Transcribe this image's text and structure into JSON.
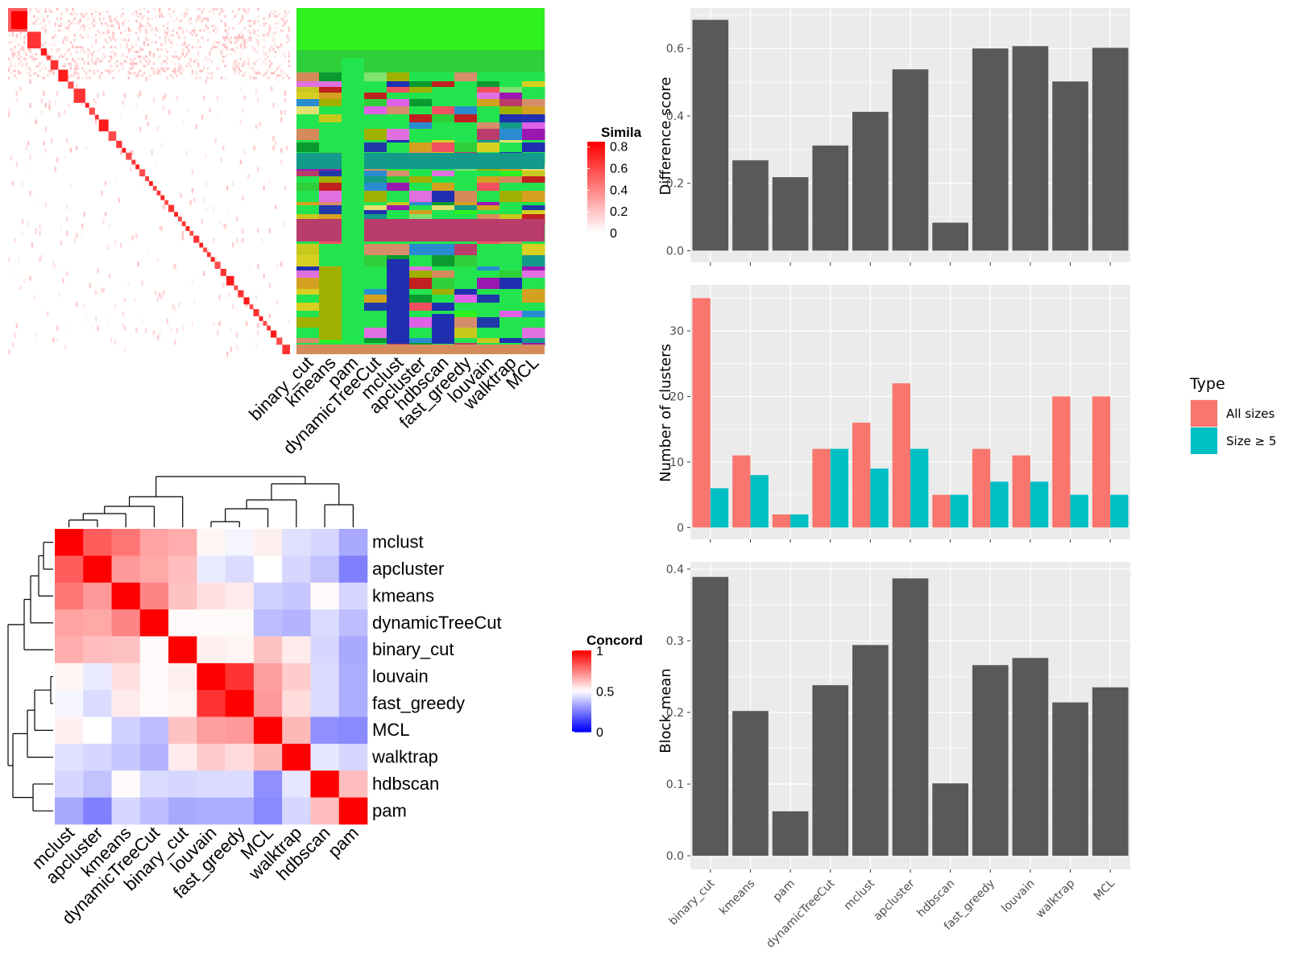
{
  "colors": {
    "panel_bg": "#ebebeb",
    "grid": "#ffffff",
    "bar": "#595959",
    "all_sizes": "#f8766d",
    "size_ge5": "#00bfc4"
  },
  "chart_data": [
    {
      "id": "similarity_heatmap",
      "type": "heatmap",
      "columns": [
        "binary_cut",
        "kmeans",
        "pam",
        "dynamicTreeCut",
        "mclust",
        "apcluster",
        "hdbscan",
        "fast_greedy",
        "louvain",
        "walktrap",
        "MCL"
      ],
      "legend_title": "Similarity",
      "legend_title_visible": "Simila",
      "legend_ticks": [
        "0.8",
        "0.6",
        "0.4",
        "0.2",
        "0"
      ],
      "legend_tick_values": [
        0.8,
        0.6,
        0.4,
        0.2,
        0
      ],
      "value_range": [
        0,
        0.85
      ],
      "cluster_block_sizes": [
        10,
        7,
        3,
        2,
        4,
        5,
        3,
        6,
        2,
        3,
        2,
        5,
        4,
        3,
        2,
        3,
        2,
        2,
        3,
        2,
        2,
        2,
        2,
        2,
        2,
        3,
        2,
        2,
        2,
        2,
        2,
        3,
        2,
        2,
        2,
        2,
        3,
        3,
        4,
        2,
        3,
        3,
        2,
        3,
        2,
        2,
        2,
        3,
        3,
        4
      ],
      "cluster_label_colors": [
        "#2ef11e",
        "#2fcf3a",
        "#22e44f",
        "#7fe36e",
        "#1f3aa8",
        "#c8c81e",
        "#a0b000",
        "#d4a020",
        "#139a8a",
        "#22e44f",
        "#d68e6a",
        "#e4e070",
        "#b93c6a",
        "#e060e8",
        "#2a8cd0",
        "#0a9a30",
        "#f05060",
        "#2030b0",
        "#9a18b0",
        "#d8d020",
        "#c02020",
        "#1f2fb0",
        "#e070e0",
        "#d58a5c"
      ]
    },
    {
      "id": "concordance_heatmap",
      "type": "heatmap",
      "rows": [
        "mclust",
        "apcluster",
        "kmeans",
        "dynamicTreeCut",
        "binary_cut",
        "louvain",
        "fast_greedy",
        "MCL",
        "walktrap",
        "hdbscan",
        "pam"
      ],
      "columns": [
        "mclust",
        "apcluster",
        "kmeans",
        "dynamicTreeCut",
        "binary_cut",
        "louvain",
        "fast_greedy",
        "MCL",
        "walktrap",
        "hdbscan",
        "pam"
      ],
      "legend_title": "Concordance",
      "legend_title_visible": "Concord",
      "legend_ticks": [
        "1",
        "0.5",
        "0"
      ],
      "legend_tick_values": [
        1,
        0.5,
        0
      ],
      "values": [
        [
          1.0,
          0.82,
          0.77,
          0.68,
          0.66,
          0.52,
          0.48,
          0.53,
          0.44,
          0.42,
          0.33
        ],
        [
          0.82,
          1.0,
          0.7,
          0.67,
          0.63,
          0.46,
          0.43,
          0.5,
          0.42,
          0.38,
          0.25
        ],
        [
          0.77,
          0.7,
          1.0,
          0.74,
          0.62,
          0.56,
          0.54,
          0.41,
          0.39,
          0.51,
          0.42
        ],
        [
          0.68,
          0.67,
          0.74,
          1.0,
          0.51,
          0.51,
          0.51,
          0.37,
          0.35,
          0.43,
          0.37
        ],
        [
          0.66,
          0.63,
          0.62,
          0.51,
          1.0,
          0.53,
          0.52,
          0.62,
          0.54,
          0.42,
          0.33
        ],
        [
          0.52,
          0.46,
          0.56,
          0.51,
          0.53,
          1.0,
          0.9,
          0.69,
          0.6,
          0.43,
          0.34
        ],
        [
          0.48,
          0.43,
          0.54,
          0.51,
          0.52,
          0.9,
          1.0,
          0.7,
          0.57,
          0.43,
          0.34
        ],
        [
          0.53,
          0.5,
          0.41,
          0.37,
          0.62,
          0.69,
          0.7,
          1.0,
          0.64,
          0.28,
          0.27
        ],
        [
          0.44,
          0.42,
          0.39,
          0.35,
          0.54,
          0.6,
          0.57,
          0.64,
          1.0,
          0.45,
          0.42
        ],
        [
          0.42,
          0.38,
          0.51,
          0.43,
          0.42,
          0.43,
          0.43,
          0.28,
          0.45,
          1.0,
          0.63
        ],
        [
          0.33,
          0.25,
          0.42,
          0.37,
          0.33,
          0.34,
          0.34,
          0.27,
          0.42,
          0.63,
          1.0
        ]
      ]
    },
    {
      "id": "difference_score",
      "type": "bar",
      "categories": [
        "binary_cut",
        "kmeans",
        "pam",
        "dynamicTreeCut",
        "mclust",
        "apcluster",
        "hdbscan",
        "fast_greedy",
        "louvain",
        "walktrap",
        "MCL"
      ],
      "values": [
        0.685,
        0.268,
        0.218,
        0.312,
        0.412,
        0.538,
        0.083,
        0.6,
        0.607,
        0.502,
        0.602
      ],
      "ylabel": "Difference score",
      "ylim": [
        -0.035,
        0.72
      ],
      "yticks": [
        0.0,
        0.2,
        0.4,
        0.6
      ],
      "ytick_labels": [
        "0.0",
        "0.2",
        "0.4",
        "0.6"
      ]
    },
    {
      "id": "number_of_clusters",
      "type": "bar",
      "categories": [
        "binary_cut",
        "kmeans",
        "pam",
        "dynamicTreeCut",
        "mclust",
        "apcluster",
        "hdbscan",
        "fast_greedy",
        "louvain",
        "walktrap",
        "MCL"
      ],
      "series": [
        {
          "name": "All sizes",
          "values": [
            35,
            11,
            2,
            12,
            16,
            22,
            5,
            12,
            11,
            20,
            20
          ]
        },
        {
          "name": "Size ≥ 5",
          "values": [
            6,
            8,
            2,
            12,
            9,
            12,
            5,
            7,
            7,
            5,
            5
          ]
        }
      ],
      "ylabel": "Number of clusters",
      "ylim": [
        -1.8,
        37
      ],
      "yticks": [
        0,
        10,
        20,
        30
      ],
      "ytick_labels": [
        "0",
        "10",
        "20",
        "30"
      ],
      "legend_title": "Type",
      "legend_placement": "right"
    },
    {
      "id": "block_mean",
      "type": "bar",
      "categories": [
        "binary_cut",
        "kmeans",
        "pam",
        "dynamicTreeCut",
        "mclust",
        "apcluster",
        "hdbscan",
        "fast_greedy",
        "louvain",
        "walktrap",
        "MCL"
      ],
      "values": [
        0.389,
        0.202,
        0.062,
        0.238,
        0.294,
        0.387,
        0.101,
        0.266,
        0.276,
        0.214,
        0.235
      ],
      "ylabel": "Block mean",
      "ylim": [
        -0.019,
        0.41
      ],
      "yticks": [
        0.0,
        0.1,
        0.2,
        0.3,
        0.4
      ],
      "ytick_labels": [
        "0.0",
        "0.1",
        "0.2",
        "0.3",
        "0.4"
      ]
    }
  ]
}
